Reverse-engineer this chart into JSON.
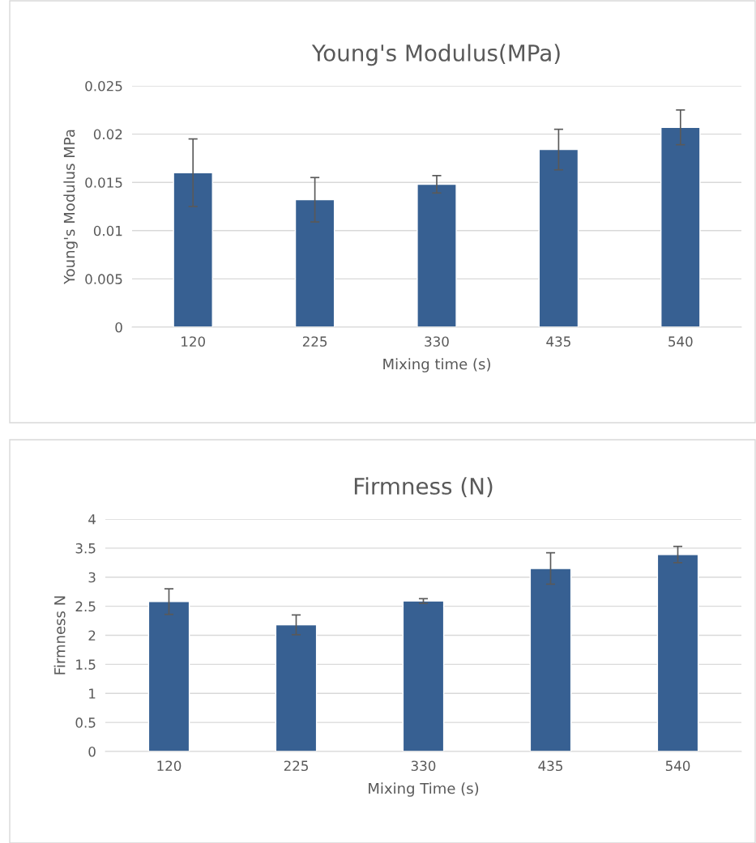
{
  "chart_data": [
    {
      "type": "bar",
      "title": "Young's Modulus(MPa)",
      "xlabel": "Mixing time (s)",
      "ylabel": "Young's Modulus MPa",
      "categories": [
        "120",
        "225",
        "330",
        "435",
        "540"
      ],
      "values": [
        0.016,
        0.0132,
        0.0148,
        0.0184,
        0.0207
      ],
      "errors": [
        0.0035,
        0.0023,
        0.0009,
        0.0021,
        0.0018
      ],
      "color": "#376092",
      "ylim": [
        0,
        0.025
      ],
      "yticks": [
        0,
        0.005,
        0.01,
        0.015,
        0.02,
        0.025
      ],
      "grid": "y"
    },
    {
      "type": "bar",
      "title": "Firmness (N)",
      "xlabel": "Mixing Time (s)",
      "ylabel": "Firmness N",
      "categories": [
        "120",
        "225",
        "330",
        "435",
        "540"
      ],
      "values": [
        2.58,
        2.18,
        2.59,
        3.15,
        3.39
      ],
      "errors": [
        0.22,
        0.17,
        0.04,
        0.27,
        0.14
      ],
      "color": "#376092",
      "ylim": [
        0,
        4
      ],
      "yticks": [
        0,
        0.5,
        1,
        1.5,
        2,
        2.5,
        3,
        3.5,
        4
      ],
      "grid": "y"
    }
  ]
}
